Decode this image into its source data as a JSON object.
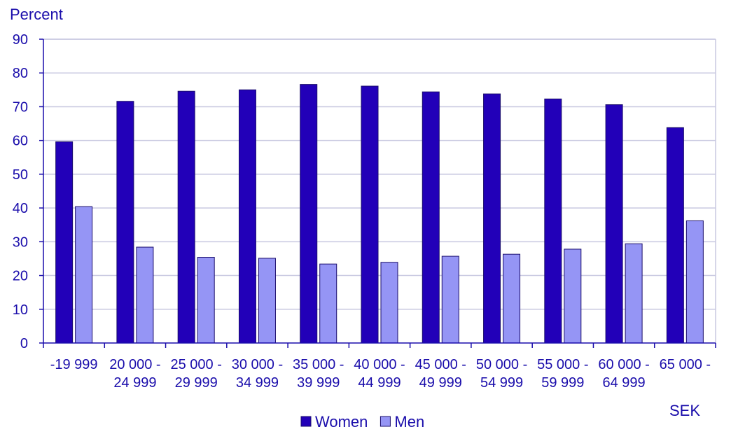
{
  "chart_data": {
    "type": "bar",
    "ylabel": "Percent",
    "xlabel": "SEK",
    "ylim": [
      0,
      90
    ],
    "yticks": [
      0,
      10,
      20,
      30,
      40,
      50,
      60,
      70,
      80,
      90
    ],
    "grid": true,
    "legend_position": "bottom-center",
    "categories": [
      [
        "-19 999",
        ""
      ],
      [
        "20 000 -",
        "24 999"
      ],
      [
        "25 000 -",
        "29 999"
      ],
      [
        "30 000 -",
        "34 999"
      ],
      [
        "35 000 -",
        "39 999"
      ],
      [
        "40 000 -",
        "44 999"
      ],
      [
        "45 000 -",
        "49 999"
      ],
      [
        "50 000 -",
        "54 999"
      ],
      [
        "55 000 -",
        "59 999"
      ],
      [
        "60 000 -",
        "64 999"
      ],
      [
        "65 000 -",
        ""
      ]
    ],
    "series": [
      {
        "name": "Women",
        "color": "#2200b8",
        "values": [
          59.6,
          71.6,
          74.6,
          75.0,
          76.6,
          76.1,
          74.4,
          73.8,
          72.3,
          70.6,
          63.8
        ]
      },
      {
        "name": "Men",
        "color": "#9595f5",
        "values": [
          40.4,
          28.4,
          25.4,
          25.1,
          23.4,
          23.9,
          25.7,
          26.3,
          27.8,
          29.4,
          36.2
        ]
      }
    ]
  }
}
